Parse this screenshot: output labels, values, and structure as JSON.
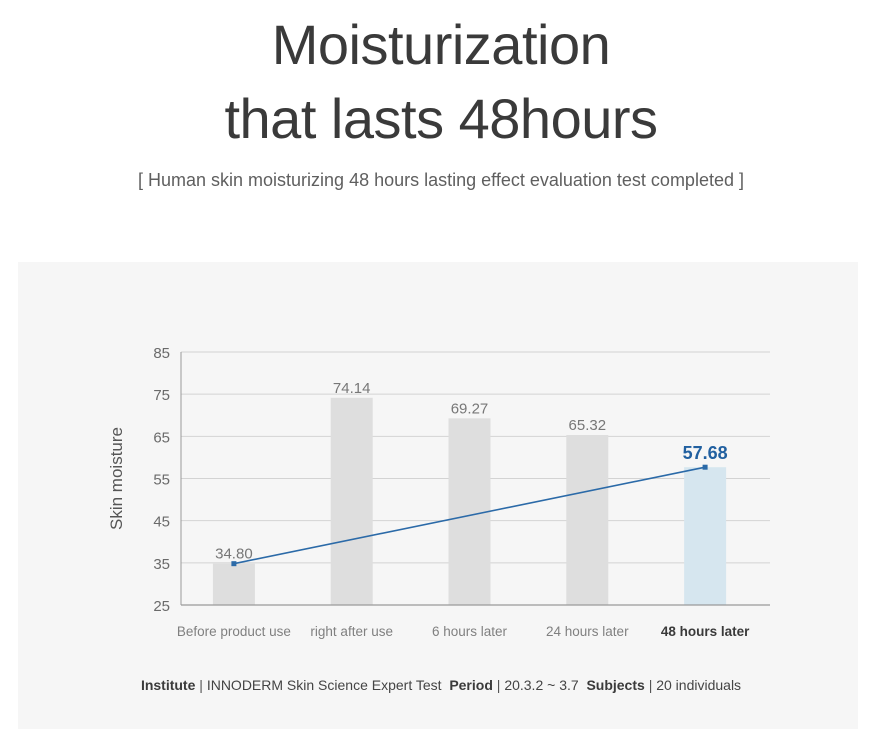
{
  "header": {
    "title_line_1": "Moisturization",
    "title_line_2": "that lasts 48hours",
    "subtitle": "[ Human skin moisturizing 48 hours lasting effect evaluation test completed ]"
  },
  "chart_data": {
    "type": "bar",
    "ylabel": "Skin moisture",
    "xlabel": "",
    "ylim": [
      25,
      85
    ],
    "yticks": [
      "85",
      "75",
      "65",
      "55",
      "45",
      "35",
      "25"
    ],
    "categories": [
      "Before product use",
      "right after use",
      "6 hours later",
      "24 hours later",
      "48 hours later"
    ],
    "values": [
      34.8,
      74.14,
      69.27,
      65.32,
      57.68
    ],
    "value_labels": [
      "34.80",
      "74.14",
      "69.27",
      "65.32",
      "57.68"
    ],
    "highlight_index": 4,
    "trend_line": {
      "from_index": 0,
      "to_index": 4
    },
    "colors": {
      "bar": "#dedede",
      "highlight_bar": "#d6e6ef",
      "trend": "#2b6aa8",
      "highlight_label": "#2160a0",
      "grid": "#d3d3d3",
      "axis": "#9a9a9a"
    },
    "grid": true
  },
  "footer": {
    "institute_label": "Institute",
    "institute_value": "INNODERM Skin Science Expert Test",
    "period_label": "Period",
    "period_value": "20.3.2 ~ 3.7",
    "subjects_label": "Subjects",
    "subjects_value": "20 individuals",
    "separator": "|"
  }
}
